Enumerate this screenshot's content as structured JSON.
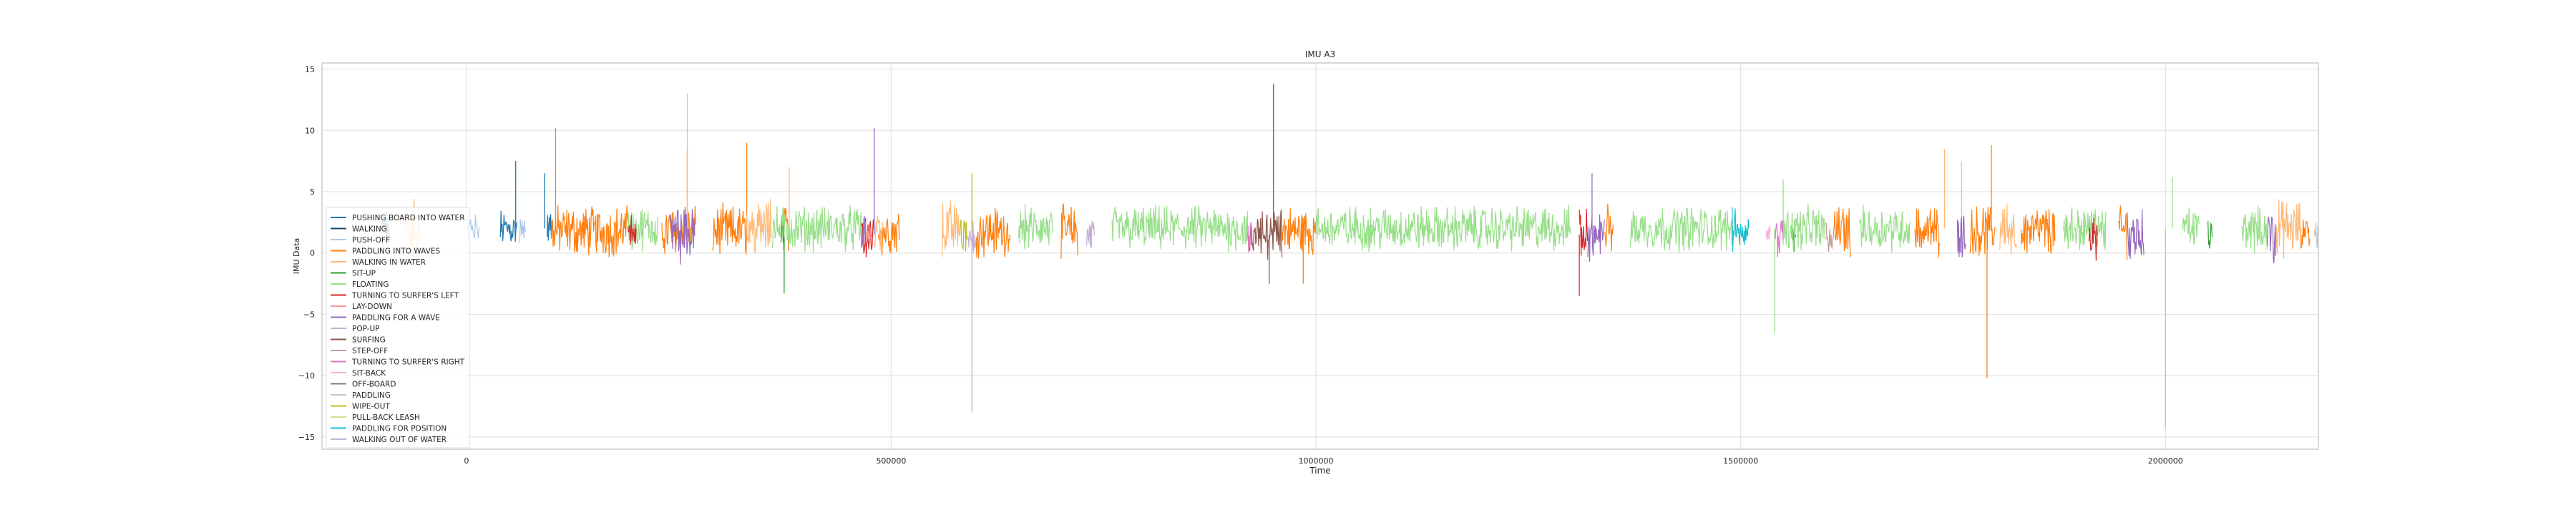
{
  "chart_data": {
    "type": "line",
    "title": "IMU A3",
    "xlabel": "Time",
    "ylabel": "IMU Data",
    "xlim": [
      -170000,
      2180000
    ],
    "ylim": [
      -16,
      15.5
    ],
    "xticks": [
      0,
      500000,
      1000000,
      1500000,
      2000000
    ],
    "yticks": [
      -15,
      -10,
      -5,
      0,
      5,
      10,
      15
    ],
    "xtick_labels": [
      "0",
      "500000",
      "1000000",
      "1500000",
      "2000000"
    ],
    "ytick_labels": [
      "−15",
      "−10",
      "−5",
      "0",
      "5",
      "10",
      "15"
    ],
    "grid": true,
    "legend_position": "center-left",
    "series": [
      {
        "name": "PUSHING BOARD INTO WATER",
        "color": "#1f77b4",
        "segments": [
          [
            -100000,
            -92000
          ],
          [
            40000,
            60000
          ],
          [
            95000,
            100000
          ]
        ],
        "baseline": 2.0,
        "amp": 1.2,
        "spikes": [
          [
            58000,
            7.5
          ],
          [
            92000,
            6.5
          ]
        ]
      },
      {
        "name": "WALKING",
        "color": "#17496b",
        "segments": [
          [
            -96000,
            -90000
          ]
        ],
        "baseline": 2.0,
        "amp": 1.0,
        "spikes": []
      },
      {
        "name": "PUSH-OFF",
        "color": "#aec7e8",
        "segments": [
          [
            0,
            15000
          ],
          [
            62000,
            70000
          ]
        ],
        "baseline": 2.0,
        "amp": 1.0,
        "spikes": []
      },
      {
        "name": "PADDLING INTO WAVES",
        "color": "#ff7f0e",
        "segments": [
          [
            100000,
            190000
          ],
          [
            230000,
            270000
          ],
          [
            290000,
            330000
          ],
          [
            370000,
            380000
          ],
          [
            485000,
            510000
          ],
          [
            600000,
            640000
          ],
          [
            700000,
            720000
          ],
          [
            960000,
            1000000
          ],
          [
            1340000,
            1350000
          ],
          [
            1610000,
            1630000
          ],
          [
            1705000,
            1735000
          ],
          [
            1770000,
            1800000
          ],
          [
            1830000,
            1870000
          ],
          [
            1945000,
            1955000
          ],
          [
            2160000,
            2170000
          ]
        ],
        "baseline": 1.8,
        "amp": 1.6,
        "spikes": [
          [
            105000,
            10.2
          ],
          [
            260000,
            8.5
          ],
          [
            330000,
            9.0
          ],
          [
            1790000,
            -10.2
          ],
          [
            1795000,
            8.8
          ],
          [
            985000,
            -2.5
          ]
        ]
      },
      {
        "name": "WALKING IN WATER",
        "color": "#ffbb78",
        "segments": [
          [
            -70000,
            -55000
          ],
          [
            330000,
            360000
          ],
          [
            480000,
            490000
          ],
          [
            560000,
            580000
          ],
          [
            1805000,
            1825000
          ],
          [
            2130000,
            2160000
          ]
        ],
        "baseline": 2.0,
        "amp": 1.8,
        "spikes": [
          [
            260000,
            13.0
          ],
          [
            380000,
            7.0
          ],
          [
            1740000,
            8.5
          ],
          [
            1760000,
            7.5
          ]
        ]
      },
      {
        "name": "SIT-UP",
        "color": "#2ca02c",
        "segments": [
          [
            370000,
            375000
          ],
          [
            1560000,
            1565000
          ],
          [
            2050000,
            2055000
          ]
        ],
        "baseline": 1.5,
        "amp": 1.2,
        "spikes": [
          [
            374000,
            -3.3
          ]
        ]
      },
      {
        "name": "FLOATING",
        "color": "#98df8a",
        "segments": [
          [
            190000,
            225000
          ],
          [
            360000,
            465000
          ],
          [
            650000,
            690000
          ],
          [
            760000,
            920000
          ],
          [
            1000000,
            1300000
          ],
          [
            1370000,
            1490000
          ],
          [
            1550000,
            1600000
          ],
          [
            1640000,
            1700000
          ],
          [
            1880000,
            1930000
          ],
          [
            2020000,
            2040000
          ],
          [
            2090000,
            2120000
          ]
        ],
        "baseline": 2.0,
        "amp": 1.4,
        "spikes": [
          [
            2000000,
            -14.3
          ],
          [
            2008000,
            6.2
          ],
          [
            1540000,
            -6.5
          ],
          [
            1550000,
            6.0
          ]
        ]
      },
      {
        "name": "TURNING TO SURFER'S LEFT",
        "color": "#d62728",
        "segments": [
          [
            190000,
            200000
          ],
          [
            465000,
            480000
          ],
          [
            1310000,
            1320000
          ],
          [
            1910000,
            1920000
          ]
        ],
        "baseline": 1.5,
        "amp": 1.5,
        "spikes": [
          [
            1310000,
            -3.5
          ]
        ]
      },
      {
        "name": "LAY-DOWN",
        "color": "#ff9896",
        "segments": [
          [
            470000,
            478000
          ]
        ],
        "baseline": 1.5,
        "amp": 1.0,
        "spikes": []
      },
      {
        "name": "PADDLING FOR A WAVE",
        "color": "#9467bd",
        "segments": [
          [
            240000,
            270000
          ],
          [
            465000,
            470000
          ],
          [
            1320000,
            1340000
          ],
          [
            1755000,
            1765000
          ],
          [
            1955000,
            1975000
          ],
          [
            2120000,
            2130000
          ]
        ],
        "baseline": 1.5,
        "amp": 1.8,
        "spikes": [
          [
            480000,
            10.2
          ],
          [
            1325000,
            6.5
          ]
        ]
      },
      {
        "name": "POP-UP",
        "color": "#c5b0d5",
        "segments": [
          [
            730000,
            740000
          ]
        ],
        "baseline": 1.5,
        "amp": 1.0,
        "spikes": []
      },
      {
        "name": "SURFING",
        "color": "#8c564b",
        "segments": [
          [
            920000,
            960000
          ]
        ],
        "baseline": 1.5,
        "amp": 1.6,
        "spikes": [
          [
            950000,
            13.8
          ],
          [
            945000,
            -2.5
          ]
        ]
      },
      {
        "name": "STEP-OFF",
        "color": "#c49c94",
        "segments": [
          [
            1600000,
            1610000
          ]
        ],
        "baseline": 1.5,
        "amp": 1.0,
        "spikes": []
      },
      {
        "name": "TURNING TO SURFER'S RIGHT",
        "color": "#e377c2",
        "segments": [
          [
            920000,
            925000
          ],
          [
            1540000,
            1550000
          ]
        ],
        "baseline": 1.5,
        "amp": 1.3,
        "spikes": []
      },
      {
        "name": "SIT-BACK",
        "color": "#f7b6d2",
        "segments": [
          [
            1530000,
            1535000
          ]
        ],
        "baseline": 1.5,
        "amp": 1.0,
        "spikes": []
      },
      {
        "name": "OFF-BOARD",
        "color": "#7f7f7f",
        "segments": [
          [
            -100000,
            -95000
          ]
        ],
        "baseline": 2.0,
        "amp": 0.8,
        "spikes": []
      },
      {
        "name": "PADDLING",
        "color": "#c7c7c7",
        "segments": [
          [
            2175000,
            2180000
          ]
        ],
        "baseline": 1.5,
        "amp": 0.8,
        "spikes": []
      },
      {
        "name": "WIPE-OUT",
        "color": "#bcbd22",
        "segments": [
          [
            580000,
            590000
          ]
        ],
        "baseline": 1.5,
        "amp": 1.5,
        "spikes": [
          [
            595000,
            6.5
          ]
        ]
      },
      {
        "name": "PULL-BACK LEASH",
        "color": "#dbdb8d",
        "segments": [
          [
            -75000,
            -72000
          ]
        ],
        "baseline": 2.0,
        "amp": 0.8,
        "spikes": []
      },
      {
        "name": "PADDLING FOR POSITION",
        "color": "#17becf",
        "segments": [
          [
            1490000,
            1510000
          ]
        ],
        "baseline": 2.0,
        "amp": 1.5,
        "spikes": []
      },
      {
        "name": "WALKING OUT OF WATER",
        "color": "#c5b0d5",
        "segments": [
          [
            590000,
            600000
          ]
        ],
        "baseline": 1.5,
        "amp": 1.2,
        "spikes": [
          [
            595000,
            -13.0
          ]
        ]
      }
    ]
  }
}
